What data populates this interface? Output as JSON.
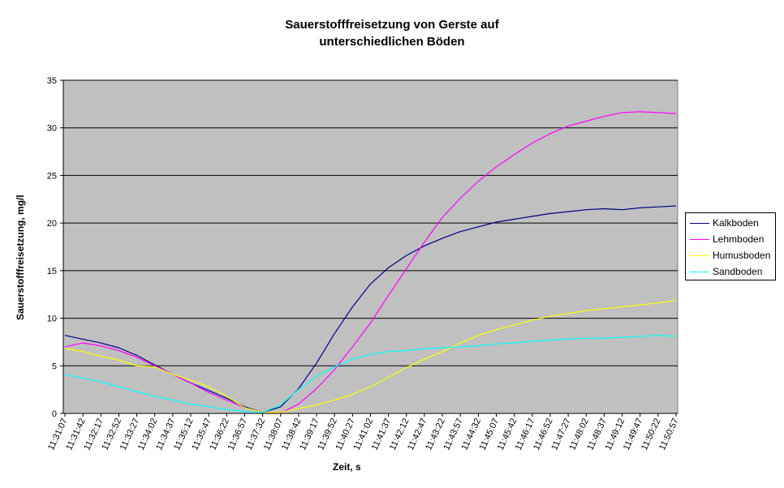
{
  "chart_data": {
    "type": "line",
    "title_line1": "Sauerstofffreisetzung von Gerste auf",
    "title_line2": "unterschiedlichen Böden",
    "xlabel": "Zeit, s",
    "ylabel": "Sauerstofffreisetzung, mg/l",
    "ylim": [
      0,
      35
    ],
    "yticks": [
      0,
      5,
      10,
      15,
      20,
      25,
      30,
      35
    ],
    "grid": true,
    "legend_position": "right",
    "plot_background": "#c0c0c0",
    "x_ticks": [
      "11:31:07",
      "11:31:42",
      "11:32:17",
      "11:32:52",
      "11:33:27",
      "11:34:02",
      "11:34:37",
      "11:35:12",
      "11:35:47",
      "11:36:22",
      "11:36:57",
      "11:37:32",
      "11:38:07",
      "11:38:42",
      "11:39:17",
      "11:39:52",
      "11:40:27",
      "11:41:02",
      "11:41:37",
      "11:42:12",
      "11:42:47",
      "11:43:22",
      "11:43:57",
      "11:44:32",
      "11:45:07",
      "11:45:42",
      "11:46:17",
      "11:46:52",
      "11:47:27",
      "11:48:02",
      "11:48:37",
      "11:49:12",
      "11:49:47",
      "11:50:22",
      "11:50:57"
    ],
    "series": [
      {
        "name": "Kalkboden",
        "color": "#000080",
        "values": [
          8.2,
          7.8,
          7.4,
          6.9,
          6.1,
          5.1,
          4.1,
          3.2,
          2.4,
          1.6,
          0.7,
          0.1,
          0.7,
          2.6,
          5.3,
          8.4,
          11.2,
          13.6,
          15.3,
          16.6,
          17.6,
          18.4,
          19.1,
          19.6,
          20.1,
          20.4,
          20.7,
          21.0,
          21.2,
          21.4,
          21.5,
          21.4,
          21.6,
          21.7,
          21.8
        ]
      },
      {
        "name": "Lehmboden",
        "color": "#ff00ff",
        "values": [
          7.0,
          7.4,
          7.1,
          6.6,
          5.9,
          5.0,
          4.1,
          3.2,
          2.2,
          1.4,
          0.6,
          0.1,
          0.0,
          1.0,
          2.6,
          4.6,
          7.0,
          9.5,
          12.4,
          15.2,
          18.0,
          20.6,
          22.6,
          24.4,
          25.9,
          27.2,
          28.4,
          29.4,
          30.2,
          30.7,
          31.2,
          31.6,
          31.7,
          31.6,
          31.5
        ]
      },
      {
        "name": "Humusboden",
        "color": "#ffff00",
        "values": [
          6.8,
          6.5,
          6.0,
          5.6,
          5.0,
          4.9,
          4.1,
          3.5,
          2.8,
          1.8,
          0.6,
          0.1,
          0.1,
          0.5,
          0.9,
          1.4,
          2.0,
          2.8,
          3.8,
          4.8,
          5.7,
          6.5,
          7.4,
          8.2,
          8.8,
          9.3,
          9.8,
          10.2,
          10.5,
          10.8,
          11.0,
          11.2,
          11.4,
          11.6,
          11.9
        ]
      },
      {
        "name": "Sandboden",
        "color": "#00ffff",
        "values": [
          4.1,
          3.7,
          3.3,
          2.8,
          2.3,
          1.8,
          1.4,
          1.0,
          0.7,
          0.4,
          0.2,
          0.1,
          0.9,
          2.5,
          3.9,
          4.9,
          5.7,
          6.2,
          6.5,
          6.6,
          6.8,
          6.9,
          7.0,
          7.1,
          7.3,
          7.4,
          7.6,
          7.7,
          7.8,
          7.9,
          7.9,
          8.0,
          8.1,
          8.2,
          8.1
        ]
      }
    ]
  }
}
